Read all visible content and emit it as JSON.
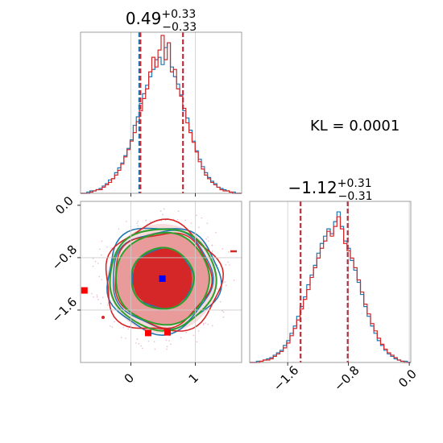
{
  "chart_data": [
    {
      "type": "histogram",
      "panel": "top-left",
      "title_value": "0.49",
      "title_plus": "+0.33",
      "title_minus": "−0.33",
      "xlim": [
        -0.78,
        1.72
      ],
      "quantiles": [
        0.16,
        0.49,
        0.82
      ],
      "dashed_lines": {
        "blue": [
          0.13,
          0.81
        ],
        "red": [
          0.15,
          0.81
        ]
      },
      "gridlines_x": [
        0,
        1
      ],
      "series": [
        {
          "color": "#1f77b4",
          "counts": [
            0,
            0,
            1,
            2,
            2,
            3,
            4,
            6,
            8,
            11,
            12,
            17,
            21,
            25,
            31,
            37,
            44,
            56,
            63,
            74,
            82,
            89,
            96,
            102,
            110,
            112,
            106,
            120,
            124,
            104,
            96,
            90,
            81,
            68,
            62,
            52,
            43,
            35,
            28,
            22,
            17,
            13,
            10,
            8,
            5,
            4,
            3,
            2,
            1,
            1,
            0,
            0
          ]
        },
        {
          "color": "#d62728",
          "counts": [
            0,
            0,
            0,
            1,
            2,
            3,
            3,
            5,
            7,
            9,
            12,
            15,
            19,
            24,
            30,
            36,
            43,
            50,
            59,
            68,
            78,
            86,
            100,
            112,
            104,
            118,
            130,
            110,
            124,
            100,
            102,
            86,
            80,
            70,
            58,
            50,
            42,
            34,
            26,
            20,
            15,
            12,
            9,
            7,
            5,
            3,
            2,
            2,
            1,
            0,
            0,
            0
          ]
        }
      ]
    },
    {
      "type": "text",
      "panel": "top-right",
      "label": "KL = 0.0001"
    },
    {
      "type": "contour",
      "panel": "bottom-left",
      "xlim": [
        -0.78,
        1.72
      ],
      "ylim": [
        -2.4,
        0.06
      ],
      "xticks": [
        0,
        1
      ],
      "xtick_labels": [
        "0",
        "1"
      ],
      "yticks": [
        0.0,
        -0.8,
        -1.6
      ],
      "ytick_labels": [
        "0.0",
        "−0.8",
        "−1.6"
      ],
      "center": [
        0.49,
        -1.12
      ],
      "blue_marker": [
        0.49,
        -1.12
      ],
      "red_markers": [
        [
          -0.72,
          -1.3
        ],
        [
          0.27,
          -1.95
        ],
        [
          0.57,
          -1.94
        ]
      ],
      "gridlines_x": [
        0,
        1
      ],
      "gridlines_y": [
        -0.8,
        -1.6
      ]
    },
    {
      "type": "histogram",
      "panel": "bottom-right",
      "title_value": "−1.12",
      "title_plus": "+0.31",
      "title_minus": "−0.31",
      "xlim": [
        -2.1,
        0.02
      ],
      "xticks": [
        -1.6,
        -0.8,
        0.0
      ],
      "xtick_labels": [
        "−1.6",
        "−0.8",
        "0.0"
      ],
      "dashed_lines": {
        "blue": [
          -1.43,
          -0.81
        ],
        "red": [
          -1.43,
          -0.81
        ]
      },
      "gridlines_x": [
        -1.6,
        -0.8,
        0.0
      ],
      "series": [
        {
          "color": "#1f77b4",
          "counts": [
            0,
            0,
            1,
            1,
            2,
            3,
            4,
            6,
            8,
            10,
            14,
            18,
            24,
            30,
            38,
            46,
            54,
            64,
            72,
            80,
            90,
            98,
            104,
            110,
            106,
            116,
            124,
            112,
            100,
            94,
            84,
            76,
            66,
            56,
            46,
            38,
            30,
            24,
            18,
            14,
            10,
            7,
            5,
            3,
            2,
            1,
            1,
            0
          ]
        },
        {
          "color": "#d62728",
          "counts": [
            0,
            0,
            0,
            1,
            2,
            2,
            3,
            5,
            7,
            9,
            12,
            16,
            22,
            28,
            35,
            44,
            52,
            60,
            70,
            78,
            86,
            94,
            100,
            108,
            104,
            112,
            120,
            110,
            98,
            92,
            86,
            78,
            68,
            58,
            48,
            40,
            32,
            26,
            20,
            15,
            11,
            8,
            6,
            4,
            2,
            1,
            0,
            0
          ]
        }
      ]
    }
  ]
}
